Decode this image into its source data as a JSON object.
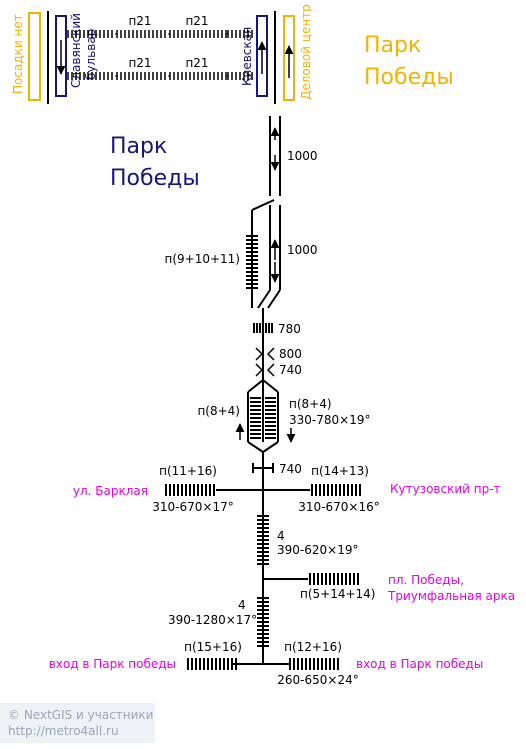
{
  "colors": {
    "line": "#000000",
    "station_title": "#15157a",
    "other_station": "#f0b400",
    "exit": "#e600e6",
    "credits_bg": "#eef2f6",
    "credits_text": "#9aa7b8"
  },
  "top_platform": {
    "left_label_1": "Посадки нет",
    "left_label_2": "Славянский бульвар",
    "right_label_1": "Киевская",
    "right_label_2": "Деловой центр",
    "car_label": "п21",
    "other_station_name": "Парк Победы"
  },
  "station": {
    "name": "Парк Победы"
  },
  "distances": {
    "upper": "1000",
    "lower": "1000",
    "cars_cluster": "п(9+10+11)",
    "d780": "780",
    "d800": "800",
    "d740a": "740",
    "d740b": "740"
  },
  "escalators": {
    "left_label": "п(8+4)",
    "right_label": "п(8+4)",
    "right_spec": "330-780×19°"
  },
  "hall_upper": {
    "left_label": "п(11+16)",
    "left_spec": "310-670×17°",
    "left_exit": "ул. Барклая",
    "right_label": "п(14+13)",
    "right_spec": "310-670×16°",
    "right_exit": "Кутузовский пр-т"
  },
  "mid": {
    "count1": "4",
    "spec1": "390-620×19°",
    "right_label": "п(5+14+14)",
    "right_exit_1": "пл. Победы,",
    "right_exit_2": "Триумфальная арка",
    "count2": "4",
    "spec2": "390-1280×17°"
  },
  "bottom": {
    "left_label": "п(15+16)",
    "left_exit": "вход в Парк победы",
    "right_label": "п(12+16)",
    "right_exit": "вход в Парк победы",
    "spec": "260-650×24°"
  },
  "credits": {
    "line1": "© NextGIS и участники",
    "line2": "http://metro4all.ru"
  }
}
